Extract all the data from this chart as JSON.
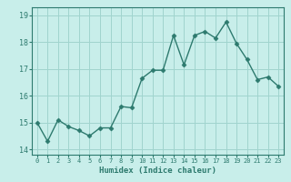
{
  "x": [
    0,
    1,
    2,
    3,
    4,
    5,
    6,
    7,
    8,
    9,
    10,
    11,
    12,
    13,
    14,
    15,
    16,
    17,
    18,
    19,
    20,
    21,
    22,
    23
  ],
  "y": [
    15.0,
    14.3,
    15.1,
    14.85,
    14.7,
    14.5,
    14.8,
    14.8,
    15.6,
    15.55,
    16.65,
    16.95,
    16.95,
    18.25,
    17.15,
    18.25,
    18.4,
    18.15,
    18.75,
    17.95,
    17.35,
    16.6,
    16.7,
    16.35
  ],
  "line_color": "#2d7a6e",
  "marker": "D",
  "markersize": 2.5,
  "linewidth": 1.0,
  "bg_color": "#c8eeea",
  "grid_color": "#a0d4ce",
  "xlabel": "Humidex (Indice chaleur)",
  "xlim": [
    -0.5,
    23.5
  ],
  "ylim": [
    13.8,
    19.3
  ],
  "yticks": [
    14,
    15,
    16,
    17,
    18,
    19
  ],
  "xticks": [
    0,
    1,
    2,
    3,
    4,
    5,
    6,
    7,
    8,
    9,
    10,
    11,
    12,
    13,
    14,
    15,
    16,
    17,
    18,
    19,
    20,
    21,
    22,
    23
  ]
}
